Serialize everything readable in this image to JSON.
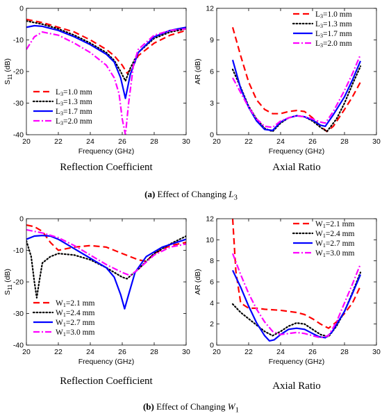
{
  "chart_data": [
    {
      "type": "line",
      "title": "Reflection Coefficient",
      "xlabel": "Frequency (GHz)",
      "ylabel": "S11 (dB)",
      "xlim": [
        20,
        30
      ],
      "ylim": [
        -40,
        0
      ],
      "xticks": [
        20,
        22,
        24,
        26,
        28,
        30
      ],
      "yticks": [
        0,
        -10,
        -20,
        -30,
        -40
      ],
      "grid": false,
      "legend_position": "bottom-left",
      "legend_symbol": "L",
      "legend_sub": "3",
      "series": [
        {
          "name": "L3=1.0 mm",
          "legend_value": "=1.0 mm",
          "color": "#ff0000",
          "style": "dashed",
          "x": [
            20,
            21,
            22,
            23,
            24,
            25,
            25.5,
            26,
            26.3,
            26.6,
            27,
            28,
            29,
            30
          ],
          "y": [
            -3.5,
            -4.5,
            -6,
            -7.5,
            -10,
            -13,
            -15,
            -18,
            -20.5,
            -19,
            -15,
            -11,
            -8.5,
            -7
          ]
        },
        {
          "name": "L3=1.3 mm",
          "legend_value": "=1.3 mm",
          "color": "#000000",
          "style": "dotted",
          "x": [
            20,
            21,
            22,
            23,
            24,
            25,
            25.5,
            25.9,
            26.2,
            26.5,
            27,
            28,
            29,
            30
          ],
          "y": [
            -4,
            -5,
            -6.5,
            -8.5,
            -11,
            -14,
            -16.5,
            -20,
            -23,
            -19,
            -14,
            -9.5,
            -7.5,
            -6.5
          ]
        },
        {
          "name": "L3=1.7 mm",
          "legend_value": "=1.7 mm",
          "color": "#0000ff",
          "style": "solid",
          "x": [
            20,
            20.5,
            21,
            22,
            23,
            24,
            25,
            25.5,
            25.9,
            26.2,
            26.5,
            27,
            28,
            29,
            30
          ],
          "y": [
            -6,
            -5.5,
            -5.7,
            -7,
            -9,
            -11.5,
            -14.5,
            -17,
            -22,
            -28.5,
            -21,
            -14,
            -9,
            -7,
            -6
          ]
        },
        {
          "name": "L3=2.0 mm",
          "legend_value": "=2.0 mm",
          "color": "#ff00ff",
          "style": "dashdot",
          "x": [
            20,
            20.5,
            21,
            22,
            23,
            24,
            25,
            25.5,
            25.8,
            26,
            26.2,
            26.4,
            26.7,
            27,
            28,
            29,
            30
          ],
          "y": [
            -13,
            -9,
            -7.5,
            -8.5,
            -11,
            -14,
            -18,
            -22,
            -27,
            -35,
            -40,
            -30,
            -18,
            -13,
            -8.5,
            -7,
            -6.5
          ]
        }
      ]
    },
    {
      "type": "line",
      "title": "Axial Ratio",
      "xlabel": "Frequency (GHz)",
      "ylabel": "AR (dB)",
      "xlim": [
        20,
        30
      ],
      "ylim": [
        0,
        12
      ],
      "xticks": [
        20,
        22,
        24,
        26,
        28,
        30
      ],
      "yticks": [
        0,
        3,
        6,
        9,
        12
      ],
      "grid": false,
      "legend_position": "top-right",
      "legend_symbol": "L",
      "legend_sub": "3",
      "series": [
        {
          "name": "L3=1.0 mm",
          "legend_value": "=1.0 mm",
          "color": "#ff0000",
          "style": "dashed",
          "x": [
            21,
            21.5,
            22,
            22.5,
            23,
            23.5,
            24,
            24.5,
            25,
            25.5,
            26,
            26.5,
            26.9,
            27.3,
            28,
            28.5,
            29
          ],
          "y": [
            10.2,
            7.5,
            5,
            3.3,
            2.4,
            2,
            2,
            2.2,
            2.3,
            2.2,
            1.6,
            0.8,
            0.3,
            0.8,
            2.4,
            3.6,
            5
          ]
        },
        {
          "name": "L3=1.3 mm",
          "legend_value": "=1.3 mm",
          "color": "#000000",
          "style": "dotted",
          "x": [
            21,
            21.5,
            22,
            22.5,
            23,
            23.5,
            24,
            24.5,
            25,
            25.5,
            26,
            26.5,
            26.9,
            27.5,
            28,
            28.5,
            29
          ],
          "y": [
            6.2,
            4.5,
            2.7,
            1.5,
            0.6,
            0.3,
            1.1,
            1.6,
            1.8,
            1.7,
            1.3,
            0.7,
            0.3,
            1.5,
            3,
            4.8,
            6.5
          ]
        },
        {
          "name": "L3=1.7 mm",
          "legend_value": "=1.7 mm",
          "color": "#0000ff",
          "style": "solid",
          "x": [
            21,
            21.5,
            22,
            22.5,
            23,
            23.5,
            24,
            24.5,
            25,
            25.5,
            26,
            26.5,
            26.8,
            27.3,
            28,
            28.5,
            29
          ],
          "y": [
            7.1,
            4.4,
            2.6,
            1.3,
            0.5,
            0.4,
            1.2,
            1.6,
            1.8,
            1.7,
            1.4,
            0.9,
            0.8,
            1.9,
            3.6,
            5.2,
            7
          ]
        },
        {
          "name": "L3=2.0 mm",
          "legend_value": "=2.0 mm",
          "color": "#ff00ff",
          "style": "dashdot",
          "x": [
            21,
            21.5,
            22,
            22.5,
            23,
            23.5,
            24,
            24.5,
            25,
            25.5,
            26,
            26.5,
            26.8,
            27.3,
            28,
            28.5,
            29
          ],
          "y": [
            5.4,
            4,
            2.6,
            1.5,
            0.8,
            0.7,
            1.3,
            1.6,
            1.8,
            1.7,
            1.5,
            1.2,
            1.1,
            2.2,
            4.2,
            5.8,
            7.6
          ]
        }
      ]
    },
    {
      "type": "line",
      "title": "Reflection Coefficient",
      "xlabel": "Frequency (GHz)",
      "ylabel": "S11 (dB)",
      "xlim": [
        20,
        30
      ],
      "ylim": [
        -40,
        0
      ],
      "xticks": [
        20,
        22,
        24,
        26,
        28,
        30
      ],
      "yticks": [
        0,
        -10,
        -20,
        -30,
        -40
      ],
      "grid": false,
      "legend_position": "bottom-left",
      "legend_symbol": "W",
      "legend_sub": "1",
      "series": [
        {
          "name": "W1=2.1 mm",
          "legend_value": "=2.1 mm",
          "color": "#ff0000",
          "style": "dashed",
          "x": [
            20,
            20.5,
            21,
            21.5,
            22,
            23,
            24,
            25,
            26,
            27,
            27.5,
            28,
            29,
            30
          ],
          "y": [
            -2,
            -2.5,
            -4,
            -7.5,
            -10,
            -9,
            -8.5,
            -9,
            -11,
            -13,
            -13.5,
            -11,
            -8.5,
            -7.5
          ]
        },
        {
          "name": "W1=2.4 mm",
          "legend_value": "=2.4 mm",
          "color": "#000000",
          "style": "dotted",
          "x": [
            20,
            20.3,
            20.5,
            20.65,
            20.8,
            21,
            21.5,
            22,
            23,
            24,
            25,
            26,
            26.3,
            27,
            28,
            29,
            30
          ],
          "y": [
            -7,
            -12,
            -20,
            -25,
            -20,
            -14,
            -12,
            -11,
            -11.5,
            -13,
            -15.5,
            -18.5,
            -19,
            -16,
            -11,
            -8,
            -5.5
          ]
        },
        {
          "name": "W1=2.7 mm",
          "legend_value": "=2.7 mm",
          "color": "#0000ff",
          "style": "solid",
          "x": [
            20,
            20.5,
            21,
            21.5,
            22,
            23,
            24,
            25,
            25.5,
            25.9,
            26.15,
            26.4,
            26.8,
            27.5,
            28.5,
            30
          ],
          "y": [
            -6.5,
            -5.5,
            -5.3,
            -5.5,
            -6.5,
            -9.5,
            -12.5,
            -15.5,
            -18.5,
            -24,
            -28.5,
            -24,
            -17,
            -12,
            -9,
            -6.5
          ]
        },
        {
          "name": "W1=3.0 mm",
          "legend_value": "=3.0 mm",
          "color": "#ff00ff",
          "style": "dashdot",
          "x": [
            20,
            21,
            22,
            23,
            24,
            25,
            26,
            26.5,
            27,
            28,
            29,
            30
          ],
          "y": [
            -3.5,
            -4.5,
            -6,
            -8.5,
            -11.5,
            -14.5,
            -17,
            -18,
            -16,
            -11.5,
            -9,
            -8
          ]
        }
      ]
    },
    {
      "type": "line",
      "title": "Axial Ratio",
      "xlabel": "Frequency (GHz)",
      "ylabel": "AR (dB)",
      "xlim": [
        20,
        30
      ],
      "ylim": [
        0,
        12
      ],
      "xticks": [
        20,
        22,
        24,
        26,
        28,
        30
      ],
      "yticks": [
        0,
        2,
        4,
        6,
        8,
        10,
        12
      ],
      "grid": false,
      "legend_position": "top-right",
      "legend_symbol": "W",
      "legend_sub": "1",
      "series": [
        {
          "name": "W1=2.1 mm",
          "legend_value": "=2.1 mm",
          "color": "#ff0000",
          "style": "dashed",
          "x": [
            21,
            21.2,
            21.5,
            22,
            22.5,
            23,
            24,
            25,
            25.5,
            26,
            26.5,
            27,
            27.5,
            28,
            28.5,
            29
          ],
          "y": [
            12,
            7,
            4,
            3.5,
            3.5,
            3.4,
            3.3,
            3.1,
            2.9,
            2.5,
            2,
            1.6,
            2.2,
            3,
            4,
            5.6
          ]
        },
        {
          "name": "W1=2.4 mm",
          "legend_value": "=2.4 mm",
          "color": "#000000",
          "style": "dotted",
          "x": [
            21,
            21.5,
            22,
            22.5,
            23,
            23.5,
            24,
            24.5,
            25,
            25.5,
            26,
            26.5,
            27,
            27.5,
            28,
            28.5,
            29
          ],
          "y": [
            3.9,
            3.1,
            2.5,
            1.9,
            1.3,
            0.9,
            1.3,
            1.8,
            2.1,
            2,
            1.5,
            1,
            0.8,
            1.8,
            3.2,
            5,
            6.9
          ]
        },
        {
          "name": "W1=2.7 mm",
          "legend_value": "=2.7 mm",
          "color": "#0000ff",
          "style": "solid",
          "x": [
            21,
            21.5,
            22,
            22.5,
            23,
            23.3,
            23.6,
            24,
            24.5,
            25,
            25.5,
            26,
            26.4,
            26.8,
            27.2,
            28,
            28.5,
            29
          ],
          "y": [
            7.1,
            5.5,
            3.7,
            2.1,
            0.9,
            0.4,
            0.5,
            1,
            1.5,
            1.6,
            1.5,
            1.1,
            0.8,
            0.7,
            1.2,
            3.2,
            4.9,
            6.7
          ]
        },
        {
          "name": "W1=3.0 mm",
          "legend_value": "=3.0 mm",
          "color": "#ff00ff",
          "style": "dashdot",
          "x": [
            21,
            21.5,
            22,
            22.5,
            23,
            23.5,
            24,
            24.5,
            25,
            25.5,
            26,
            26.5,
            27,
            27.5,
            28,
            28.5,
            29
          ],
          "y": [
            8.7,
            6.7,
            4.9,
            3.4,
            2.2,
            1.3,
            1,
            1.1,
            1.2,
            1.1,
            0.9,
            0.7,
            0.9,
            2.2,
            4,
            5.8,
            7.7
          ]
        }
      ]
    }
  ],
  "captions": {
    "a_prefix": "(a)",
    "a_text": "Effect of Changing",
    "a_symbol": "L",
    "a_sub": "3",
    "b_prefix": "(b)",
    "b_text": "Effect of Changing",
    "b_symbol": "W",
    "b_sub": "1"
  },
  "colors": {
    "red": "#ff0000",
    "black": "#000000",
    "blue": "#0000ff",
    "magenta": "#ff00ff"
  }
}
